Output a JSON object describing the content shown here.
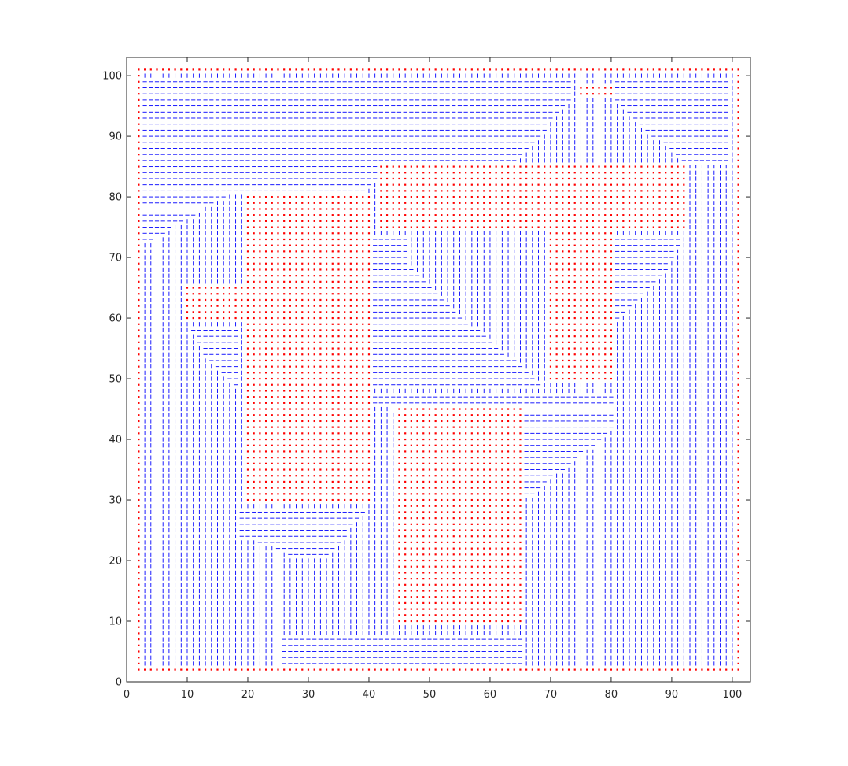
{
  "chart_data": {
    "type": "scatter",
    "title": "",
    "xlabel": "",
    "ylabel": "",
    "xlim": [
      0,
      103
    ],
    "ylim": [
      0,
      103
    ],
    "grid": false,
    "legend": "none",
    "x_ticks": [
      0,
      10,
      20,
      30,
      40,
      50,
      60,
      70,
      80,
      90,
      100
    ],
    "y_ticks": [
      0,
      10,
      20,
      30,
      40,
      50,
      60,
      70,
      80,
      90,
      100
    ],
    "x_tick_labels": [
      "0",
      "10",
      "20",
      "30",
      "40",
      "50",
      "60",
      "70",
      "80",
      "90",
      "100"
    ],
    "y_tick_labels": [
      "0",
      "10",
      "20",
      "30",
      "40",
      "50",
      "60",
      "70",
      "80",
      "90",
      "100"
    ],
    "grid_extent": [
      2,
      101
    ],
    "series": [
      {
        "marker": "dot",
        "color": "#ff0000",
        "description": "obstacle / boundary cells",
        "outer_boundary": {
          "x": [
            2,
            101
          ],
          "y": [
            2,
            101
          ]
        },
        "rectangles": [
          {
            "x": [
              20,
              40
            ],
            "y": [
              30,
              80
            ]
          },
          {
            "x": [
              45,
              65
            ],
            "y": [
              10,
              45
            ]
          },
          {
            "x": [
              70,
              80
            ],
            "y": [
              50,
              75
            ]
          },
          {
            "x": [
              42,
              92
            ],
            "y": [
              75,
              85
            ]
          },
          {
            "x": [
              10,
              20
            ],
            "y": [
              60,
              65
            ]
          },
          {
            "x": [
              75,
              80
            ],
            "y": [
              97,
              98
            ]
          }
        ]
      },
      {
        "marker": "dash",
        "color": "#0000ff",
        "description": "free cells drawn as short horizontal or vertical dashes",
        "orientation_regions": [
          {
            "orientation": "horizontal",
            "polygon": [
              [
                3,
                100
              ],
              [
                74,
                100
              ],
              [
                74,
                97
              ],
              [
                65,
                86
              ],
              [
                44,
                86
              ],
              [
                40,
                81
              ],
              [
                18,
                81
              ],
              [
                3,
                72
              ]
            ]
          },
          {
            "orientation": "horizontal",
            "polygon": [
              [
                81,
                100
              ],
              [
                100,
                100
              ],
              [
                100,
                86
              ],
              [
                92,
                86
              ],
              [
                87,
                90
              ],
              [
                80,
                97
              ]
            ]
          },
          {
            "orientation": "horizontal",
            "polygon": [
              [
                81,
                74
              ],
              [
                92,
                74
              ],
              [
                90,
                69
              ],
              [
                81,
                59
              ]
            ]
          },
          {
            "orientation": "horizontal",
            "polygon": [
              [
                10,
                59
              ],
              [
                19,
                59
              ],
              [
                19,
                47
              ],
              [
                13,
                54
              ]
            ]
          },
          {
            "orientation": "horizontal",
            "polygon": [
              [
                41,
                74
              ],
              [
                47,
                74
              ],
              [
                47,
                69
              ],
              [
                57,
                59
              ],
              [
                69,
                49
              ],
              [
                69,
                49
              ],
              [
                45,
                49
              ],
              [
                41,
                49
              ]
            ]
          },
          {
            "orientation": "horizontal",
            "polygon": [
              [
                41,
                48
              ],
              [
                81,
                48
              ],
              [
                81,
                42
              ],
              [
                66,
                30
              ],
              [
                66,
                45
              ],
              [
                44,
                45
              ],
              [
                41,
                46
              ]
            ]
          },
          {
            "orientation": "horizontal",
            "polygon": [
              [
                19,
                29
              ],
              [
                40,
                29
              ],
              [
                34,
                21
              ],
              [
                27,
                21
              ],
              [
                19,
                24
              ]
            ]
          },
          {
            "orientation": "horizontal",
            "polygon": [
              [
                26,
                8
              ],
              [
                66,
                8
              ],
              [
                66,
                2
              ],
              [
                26,
                2
              ]
            ]
          }
        ]
      }
    ]
  }
}
